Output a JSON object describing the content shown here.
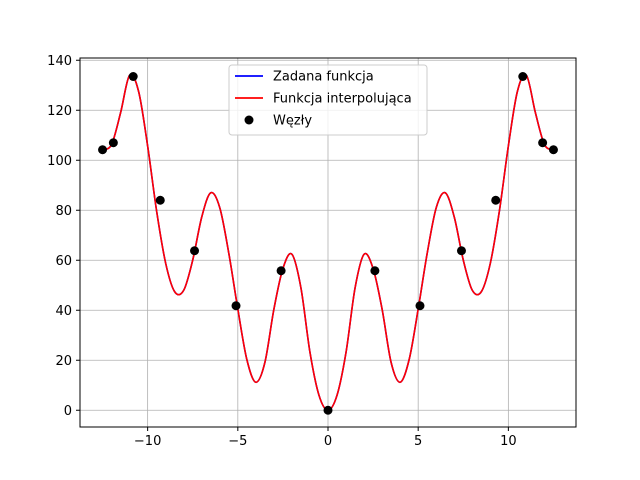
{
  "chart_data": {
    "type": "line",
    "title": "",
    "xlabel": "",
    "ylabel": "",
    "xlim": [
      -13.75,
      13.75
    ],
    "ylim": [
      -6.7,
      140.9
    ],
    "grid": true,
    "legend_placement": "top-center",
    "x_ticks": [
      -10,
      -5,
      0,
      5,
      10
    ],
    "x_tick_labels": [
      "−10",
      "−5",
      "0",
      "5",
      "10"
    ],
    "y_ticks": [
      0,
      20,
      40,
      60,
      80,
      100,
      120,
      140
    ],
    "y_tick_labels": [
      "0",
      "20",
      "40",
      "60",
      "80",
      "100",
      "120",
      "140"
    ],
    "series": [
      {
        "name": "Zadana funkcja",
        "kind": "line",
        "color": "#0000ff",
        "x": [
          -12.5,
          -12.0,
          -11.5,
          -11.0,
          -10.5,
          -10.0,
          -9.5,
          -9.0,
          -8.5,
          -8.0,
          -7.5,
          -7.0,
          -6.5,
          -6.0,
          -5.5,
          -5.0,
          -4.5,
          -4.0,
          -3.5,
          -3.0,
          -2.5,
          -2.0,
          -1.5,
          -1.0,
          -0.5,
          0.0,
          0.5,
          1.0,
          1.5,
          2.0,
          2.5,
          3.0,
          3.5,
          4.0,
          4.5,
          5.0,
          5.5,
          6.0,
          6.5,
          7.0,
          7.5,
          8.0,
          8.5,
          9.0,
          9.5,
          10.0,
          10.5,
          11.0,
          11.5,
          12.0,
          12.5
        ],
        "y": [
          104.2,
          106.3,
          119.0,
          134.0,
          127.5,
          105.7,
          79.6,
          58.8,
          47.4,
          48.0,
          60.1,
          77.3,
          87.0,
          81.0,
          62.8,
          40.5,
          20.3,
          11.2,
          19.1,
          40.4,
          56.7,
          62.4,
          48.9,
          23.2,
          6.0,
          0.0,
          6.0,
          23.2,
          48.9,
          62.4,
          56.7,
          40.4,
          19.1,
          11.2,
          20.3,
          40.5,
          62.8,
          81.0,
          87.0,
          77.3,
          60.1,
          48.0,
          47.4,
          58.8,
          79.6,
          105.7,
          127.5,
          134.0,
          119.0,
          106.3,
          104.2
        ]
      },
      {
        "name": "Funkcja interpolująca",
        "kind": "line",
        "color": "#ff0000",
        "x": [
          -12.5,
          -12.0,
          -11.5,
          -11.0,
          -10.5,
          -10.0,
          -9.5,
          -9.0,
          -8.5,
          -8.0,
          -7.5,
          -7.0,
          -6.5,
          -6.0,
          -5.5,
          -5.0,
          -4.5,
          -4.0,
          -3.5,
          -3.0,
          -2.5,
          -2.0,
          -1.5,
          -1.0,
          -0.5,
          0.0,
          0.5,
          1.0,
          1.5,
          2.0,
          2.5,
          3.0,
          3.5,
          4.0,
          4.5,
          5.0,
          5.5,
          6.0,
          6.5,
          7.0,
          7.5,
          8.0,
          8.5,
          9.0,
          9.5,
          10.0,
          10.5,
          11.0,
          11.5,
          12.0,
          12.5
        ],
        "y": [
          104.2,
          106.3,
          119.0,
          134.0,
          127.5,
          105.7,
          79.6,
          58.8,
          47.4,
          48.0,
          60.1,
          77.3,
          87.0,
          81.0,
          62.8,
          40.5,
          20.3,
          11.2,
          19.1,
          40.4,
          56.7,
          62.4,
          48.9,
          23.2,
          6.0,
          0.0,
          6.0,
          23.2,
          48.9,
          62.4,
          56.7,
          40.4,
          19.1,
          11.2,
          20.3,
          40.5,
          62.8,
          81.0,
          87.0,
          77.3,
          60.1,
          48.0,
          47.4,
          58.8,
          79.6,
          105.7,
          127.5,
          134.0,
          119.0,
          106.3,
          104.2
        ]
      },
      {
        "name": "Węzły",
        "kind": "scatter",
        "color": "#000000",
        "x": [
          -12.5,
          -11.9,
          -10.8,
          -9.3,
          -7.4,
          -5.1,
          -2.6,
          0.0,
          2.6,
          5.1,
          7.4,
          9.3,
          10.8,
          11.9,
          12.5
        ],
        "y": [
          104.2,
          107.0,
          133.5,
          84.0,
          63.8,
          41.8,
          55.8,
          0.0,
          55.8,
          41.8,
          63.8,
          84.0,
          133.5,
          107.0,
          104.2
        ]
      }
    ]
  }
}
